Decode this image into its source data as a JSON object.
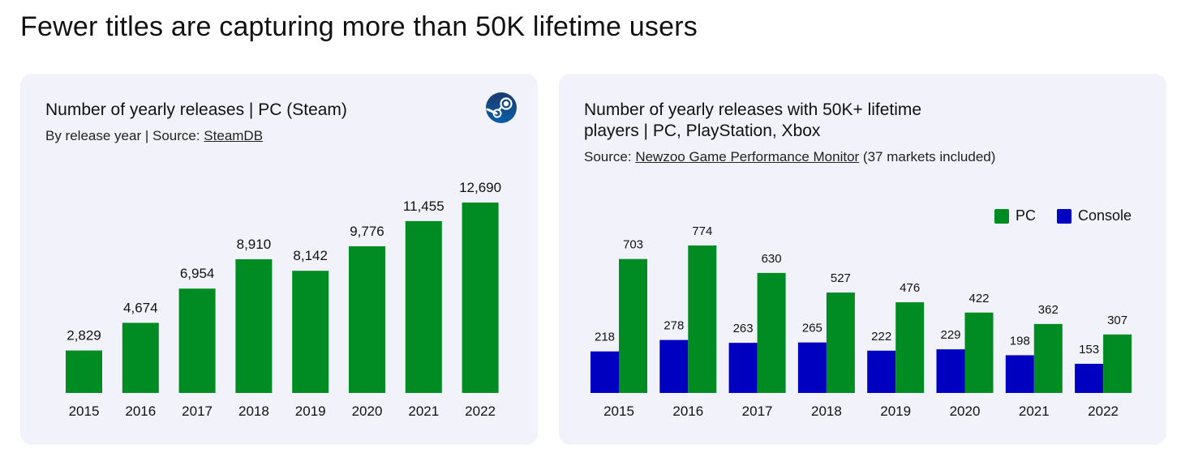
{
  "title": "Fewer titles are capturing more than 50K lifetime users",
  "left_panel": {
    "title": "Number of yearly releases | PC (Steam)",
    "subtitle_prefix": "By release year | Source: ",
    "subtitle_link": "SteamDB",
    "logo_icon": "steam-logo-icon"
  },
  "right_panel": {
    "title_line1": "Number of yearly releases with 50K+ lifetime",
    "title_line2": "players | PC, PlayStation, Xbox",
    "subtitle_prefix": "Source: ",
    "subtitle_link": "Newzoo Game Performance Monitor",
    "subtitle_suffix": " (37 markets included)"
  },
  "chart_data": [
    {
      "type": "bar",
      "categories": [
        "2015",
        "2016",
        "2017",
        "2018",
        "2019",
        "2020",
        "2021",
        "2022"
      ],
      "values": [
        2829,
        4674,
        6954,
        8910,
        8142,
        9776,
        11455,
        12690
      ],
      "value_labels": [
        "2,829",
        "4,674",
        "6,954",
        "8,910",
        "8,142",
        "9,776",
        "11,455",
        "12,690"
      ],
      "color": "#008c23",
      "ylim": [
        0,
        12690
      ],
      "grid": false
    },
    {
      "type": "bar",
      "categories": [
        "2015",
        "2016",
        "2017",
        "2018",
        "2019",
        "2020",
        "2021",
        "2022"
      ],
      "series": [
        {
          "name": "Console",
          "values": [
            218,
            278,
            263,
            265,
            222,
            229,
            198,
            153
          ],
          "color": "#0000c0"
        },
        {
          "name": "PC",
          "values": [
            703,
            774,
            630,
            527,
            476,
            422,
            362,
            307
          ],
          "color": "#008c23"
        }
      ],
      "legend": {
        "placement": "top-right",
        "order": [
          "PC",
          "Console"
        ]
      },
      "ylim": [
        0,
        774
      ],
      "grid": false
    }
  ]
}
